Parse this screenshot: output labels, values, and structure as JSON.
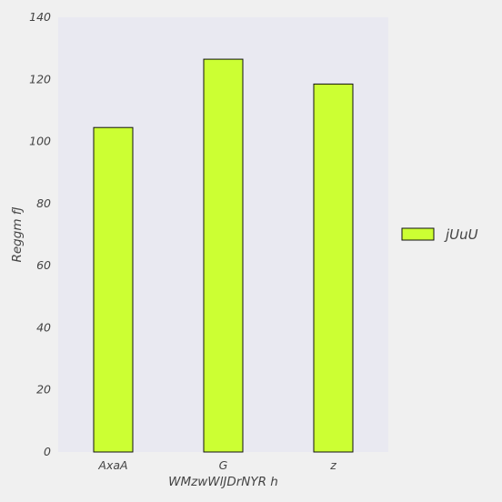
{
  "chart_data": {
    "type": "bar",
    "title": "",
    "xlabel": "WMzwWlJDrNYR h",
    "ylabel": "Reggm fJ",
    "categories": [
      "AxaA",
      "G",
      "z"
    ],
    "series": [
      {
        "name": "jUuU",
        "values": [
          104.5,
          126.5,
          118.5
        ],
        "color": "#ccff33"
      }
    ],
    "ylim": [
      0,
      140
    ],
    "yticks": [
      0,
      20,
      40,
      60,
      80,
      100,
      120,
      140
    ],
    "grid": false,
    "legend_position": "center-right",
    "colors": {
      "plot_background": "#e9e9f1",
      "page_background": "#f0f0f0",
      "bar_edge": "#111111",
      "text": "#444444"
    }
  }
}
